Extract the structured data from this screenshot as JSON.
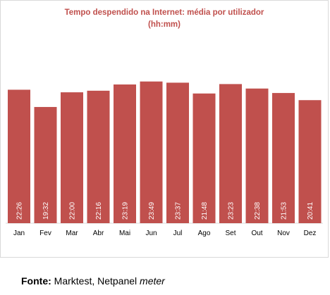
{
  "chart_data": {
    "type": "bar",
    "title_line1": "Tempo despendido na Internet: média por utilizador",
    "title_line2": "(hh:mm)",
    "categories": [
      "Jan",
      "Fev",
      "Mar",
      "Abr",
      "Mai",
      "Jun",
      "Jul",
      "Ago",
      "Set",
      "Out",
      "Nov",
      "Dez"
    ],
    "values": [
      22.433,
      19.533,
      22.0,
      22.267,
      23.317,
      23.817,
      23.617,
      21.8,
      23.383,
      22.633,
      21.883,
      20.683
    ],
    "data_labels": [
      "22:26",
      "19:32",
      "22:00",
      "22:16",
      "23:19",
      "23:49",
      "23:37",
      "21:48",
      "23:23",
      "22:38",
      "21:53",
      "20:41"
    ],
    "ylim": [
      0,
      25
    ],
    "bar_color": "#c0504d",
    "label_color": "#ffffff"
  },
  "source": {
    "label": "Fonte:",
    "text": " Marktest, Netpanel ",
    "italic": "meter"
  }
}
